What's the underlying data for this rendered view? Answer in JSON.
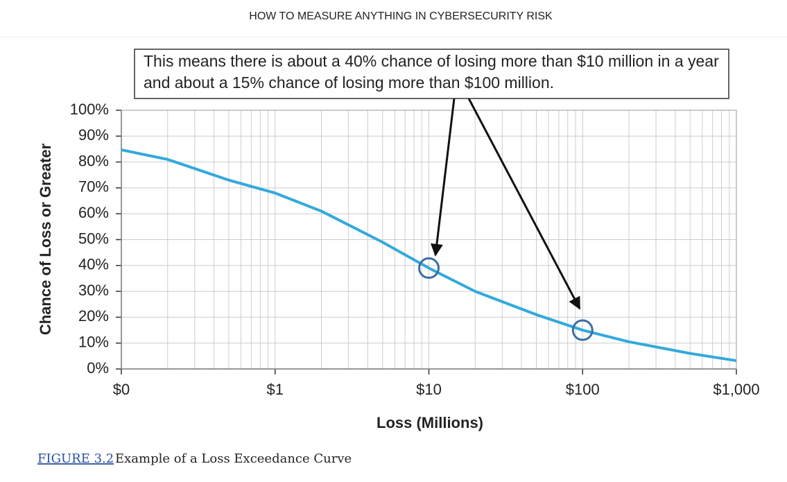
{
  "header": {
    "title": "HOW TO MEASURE ANYTHING IN CYBERSECURITY RISK"
  },
  "chart_data": {
    "type": "line",
    "annotation": "This means there is about a 40% chance of losing more than $10 million in a year and about a 15% chance of losing more than $100 million.",
    "x_label": "Loss (Millions)",
    "y_label": "Chance of Loss or Greater",
    "x": [
      0.1,
      0.2,
      0.5,
      1,
      2,
      5,
      10,
      20,
      50,
      100,
      200,
      500,
      1000
    ],
    "values": [
      84.7,
      81,
      73,
      68,
      61,
      49,
      39,
      30,
      21,
      15,
      10.5,
      6,
      3.2
    ],
    "color": "#33a9dc",
    "highlights": {
      "x": [
        10,
        100
      ],
      "values": [
        39,
        15
      ],
      "color": "#3a6ea5"
    },
    "log_x": true,
    "grid": true,
    "minor_grid": true,
    "xlim": [
      0.1,
      1000
    ],
    "xticks": [
      {
        "value": 0.1,
        "label": "$0"
      },
      {
        "value": 1,
        "label": "$1"
      },
      {
        "value": 10,
        "label": "$10"
      },
      {
        "value": 100,
        "label": "$100"
      },
      {
        "value": 1000,
        "label": "$1,000"
      }
    ],
    "ylim": [
      0,
      100
    ],
    "yticks": [
      {
        "value": 0,
        "label": "0%"
      },
      {
        "value": 10,
        "label": "10%"
      },
      {
        "value": 20,
        "label": "20%"
      },
      {
        "value": 30,
        "label": "30%"
      },
      {
        "value": 40,
        "label": "40%"
      },
      {
        "value": 50,
        "label": "50%"
      },
      {
        "value": 60,
        "label": "60%"
      },
      {
        "value": 70,
        "label": "70%"
      },
      {
        "value": 80,
        "label": "80%"
      },
      {
        "value": 90,
        "label": "90%"
      },
      {
        "value": 100,
        "label": "100%"
      }
    ]
  },
  "caption": {
    "figure": "FIGURE 3.2",
    "text": "Example of a Loss Exceedance Curve"
  }
}
